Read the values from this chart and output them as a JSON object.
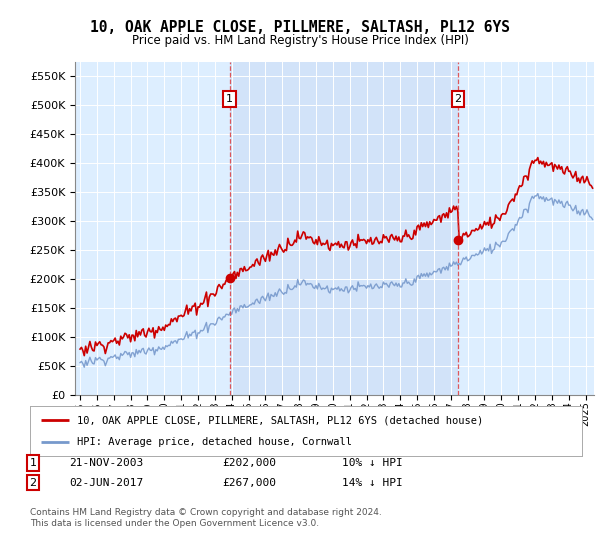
{
  "title": "10, OAK APPLE CLOSE, PILLMERE, SALTASH, PL12 6YS",
  "subtitle": "Price paid vs. HM Land Registry's House Price Index (HPI)",
  "plot_bg": "#ddeeff",
  "shaded_bg": "#ccddf5",
  "sale1_price": 202000,
  "sale2_price": 267000,
  "sale1_year": 2003.87,
  "sale2_year": 2017.42,
  "legend_property": "10, OAK APPLE CLOSE, PILLMERE, SALTASH, PL12 6YS (detached house)",
  "legend_hpi": "HPI: Average price, detached house, Cornwall",
  "footer": "Contains HM Land Registry data © Crown copyright and database right 2024.\nThis data is licensed under the Open Government Licence v3.0.",
  "table_row1": [
    "1",
    "21-NOV-2003",
    "£202,000",
    "10% ↓ HPI"
  ],
  "table_row2": [
    "2",
    "02-JUN-2017",
    "£267,000",
    "14% ↓ HPI"
  ],
  "ylim": [
    0,
    575000
  ],
  "yticks": [
    0,
    50000,
    100000,
    150000,
    200000,
    250000,
    300000,
    350000,
    400000,
    450000,
    500000,
    550000
  ],
  "ytick_labels": [
    "£0",
    "£50K",
    "£100K",
    "£150K",
    "£200K",
    "£250K",
    "£300K",
    "£350K",
    "£400K",
    "£450K",
    "£500K",
    "£550K"
  ],
  "red_color": "#cc0000",
  "blue_color": "#7799cc",
  "xstart": 1995,
  "xend": 2025.5
}
